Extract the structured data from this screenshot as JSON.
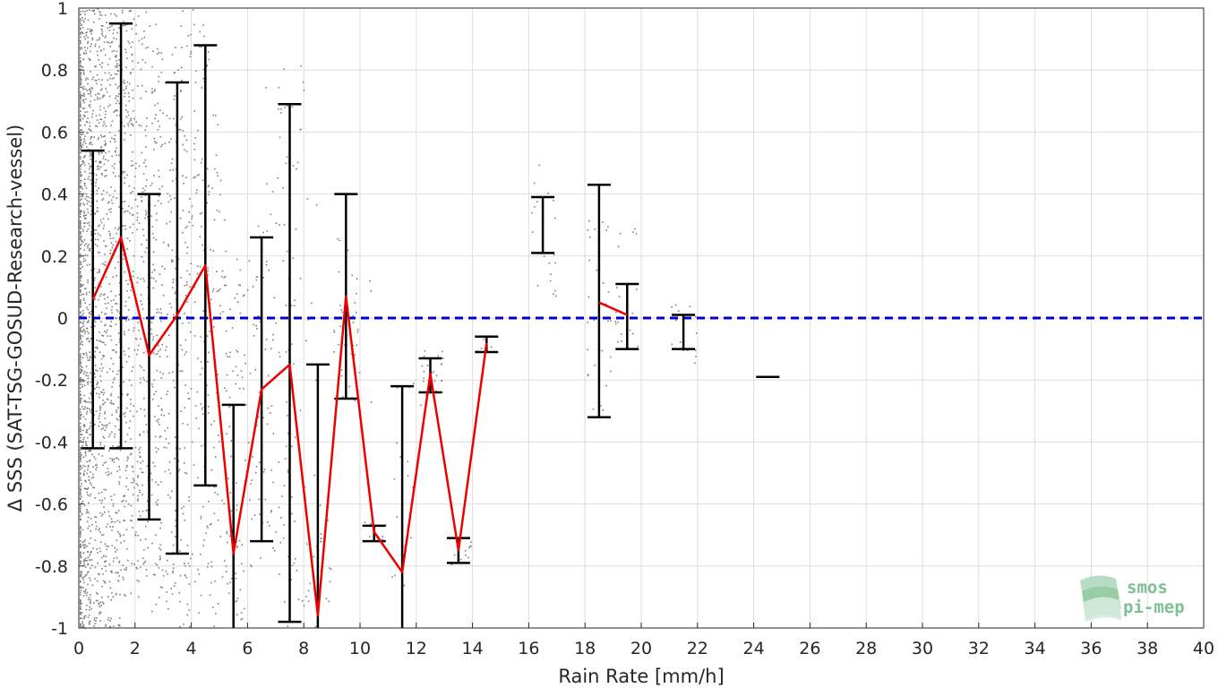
{
  "chart_data": {
    "type": "line",
    "xlabel": "Rain Rate [mm/h]",
    "ylabel": "Δ SSS (SAT-TSG-GOSUD-Research-vessel)",
    "xlim": [
      0,
      40
    ],
    "ylim": [
      -1,
      1
    ],
    "x_ticks": [
      "0",
      "2",
      "4",
      "6",
      "8",
      "10",
      "12",
      "14",
      "16",
      "18",
      "20",
      "22",
      "24",
      "26",
      "28",
      "30",
      "32",
      "34",
      "36",
      "38",
      "40"
    ],
    "y_ticks": [
      "-1",
      "-0.8",
      "-0.6",
      "-0.4",
      "-0.2",
      "0",
      "0.2",
      "0.4",
      "0.6",
      "0.8",
      "1"
    ],
    "grid": true,
    "zero_line": {
      "y": 0,
      "color": "#0000cc",
      "style": "dashed"
    },
    "mean_line_color": "#ee0000",
    "errorbar_color": "#000000",
    "scatter_color": "#7f7f7f",
    "bins": [
      {
        "x": 0.5,
        "mean": 0.06,
        "low": -0.42,
        "high": 0.54
      },
      {
        "x": 1.5,
        "mean": 0.26,
        "low": -0.42,
        "high": 0.95
      },
      {
        "x": 2.5,
        "mean": -0.12,
        "low": -0.65,
        "high": 0.4
      },
      {
        "x": 3.5,
        "mean": 0.01,
        "low": -0.76,
        "high": 0.76
      },
      {
        "x": 4.5,
        "mean": 0.17,
        "low": -0.54,
        "high": 0.88
      },
      {
        "x": 5.5,
        "mean": -0.76,
        "low": -1.0,
        "high": -0.28
      },
      {
        "x": 6.5,
        "mean": -0.23,
        "low": -0.72,
        "high": 0.26
      },
      {
        "x": 7.5,
        "mean": -0.15,
        "low": -0.98,
        "high": 0.69
      },
      {
        "x": 8.5,
        "mean": -0.96,
        "low": -1.0,
        "high": -0.15
      },
      {
        "x": 9.5,
        "mean": 0.07,
        "low": -0.26,
        "high": 0.4
      },
      {
        "x": 10.5,
        "mean": -0.69,
        "low": -0.72,
        "high": -0.67
      },
      {
        "x": 11.5,
        "mean": -0.82,
        "low": -1.0,
        "high": -0.22
      },
      {
        "x": 12.5,
        "mean": -0.18,
        "low": -0.24,
        "high": -0.13
      },
      {
        "x": 13.5,
        "mean": -0.75,
        "low": -0.79,
        "high": -0.71
      },
      {
        "x": 14.5,
        "mean": -0.08,
        "low": -0.11,
        "high": -0.06
      },
      {
        "x": 16.5,
        "mean": 0.3,
        "low": 0.21,
        "high": 0.39
      },
      {
        "x": 18.5,
        "mean": 0.05,
        "low": -0.32,
        "high": 0.43
      },
      {
        "x": 19.5,
        "mean": 0.01,
        "low": -0.1,
        "high": 0.11
      },
      {
        "x": 21.5,
        "mean": -0.04,
        "low": -0.1,
        "high": 0.01
      },
      {
        "x": 24.5,
        "mean": -0.19,
        "low": -0.19,
        "high": -0.19
      }
    ],
    "mean_line_segments": [
      [
        0,
        1,
        2,
        3,
        4,
        5,
        6,
        7,
        8,
        9,
        10,
        11,
        12,
        13,
        14
      ],
      [
        16,
        17
      ]
    ],
    "scatter_columns": [
      {
        "x": 0.0,
        "low": -1.0,
        "high": 1.0,
        "n": 700
      },
      {
        "x": 0.5,
        "low": -1.0,
        "high": 1.0,
        "n": 500
      },
      {
        "x": 1.0,
        "low": -1.0,
        "high": 1.0,
        "n": 300
      },
      {
        "x": 1.5,
        "low": -0.9,
        "high": 1.0,
        "n": 250
      },
      {
        "x": 2.0,
        "low": -0.9,
        "high": 1.0,
        "n": 200
      },
      {
        "x": 2.5,
        "low": -0.85,
        "high": 0.95,
        "n": 150
      },
      {
        "x": 3.0,
        "low": -0.95,
        "high": 0.9,
        "n": 120
      },
      {
        "x": 3.5,
        "low": -0.95,
        "high": 0.9,
        "n": 100
      },
      {
        "x": 4.0,
        "low": -1.0,
        "high": 1.0,
        "n": 100
      },
      {
        "x": 4.5,
        "low": -0.9,
        "high": 0.95,
        "n": 80
      },
      {
        "x": 5.0,
        "low": -1.0,
        "high": 0.45,
        "n": 70
      },
      {
        "x": 5.5,
        "low": -1.0,
        "high": 0.2,
        "n": 50
      },
      {
        "x": 6.0,
        "low": -0.9,
        "high": 0.2,
        "n": 40
      },
      {
        "x": 6.5,
        "low": -0.8,
        "high": 0.3,
        "n": 40
      },
      {
        "x": 7.0,
        "low": -0.9,
        "high": 0.85,
        "n": 30
      },
      {
        "x": 7.5,
        "low": -1.0,
        "high": 0.75,
        "n": 40
      },
      {
        "x": 8.0,
        "low": -1.0,
        "high": 0.9,
        "n": 30
      },
      {
        "x": 8.5,
        "low": -1.0,
        "high": -0.6,
        "n": 25
      },
      {
        "x": 9.5,
        "low": -0.3,
        "high": 0.3,
        "n": 30
      },
      {
        "x": 10.0,
        "low": -0.3,
        "high": 0.15,
        "n": 10
      },
      {
        "x": 10.5,
        "low": -0.75,
        "high": -0.65,
        "n": 10
      },
      {
        "x": 11.5,
        "low": -0.9,
        "high": -0.2,
        "n": 15
      },
      {
        "x": 12.5,
        "low": -0.28,
        "high": -0.08,
        "n": 25
      },
      {
        "x": 13.5,
        "low": -0.8,
        "high": -0.72,
        "n": 10
      },
      {
        "x": 14.5,
        "low": -0.12,
        "high": -0.05,
        "n": 8
      },
      {
        "x": 16.5,
        "low": 0.05,
        "high": 0.5,
        "n": 20
      },
      {
        "x": 18.5,
        "low": -0.3,
        "high": 0.35,
        "n": 30
      },
      {
        "x": 19.5,
        "low": -0.1,
        "high": 0.3,
        "n": 20
      },
      {
        "x": 21.5,
        "low": -0.15,
        "high": 0.05,
        "n": 15
      }
    ]
  },
  "logo": {
    "line1": "smos",
    "line2": "pi-mep",
    "color": "#7fbf95"
  }
}
